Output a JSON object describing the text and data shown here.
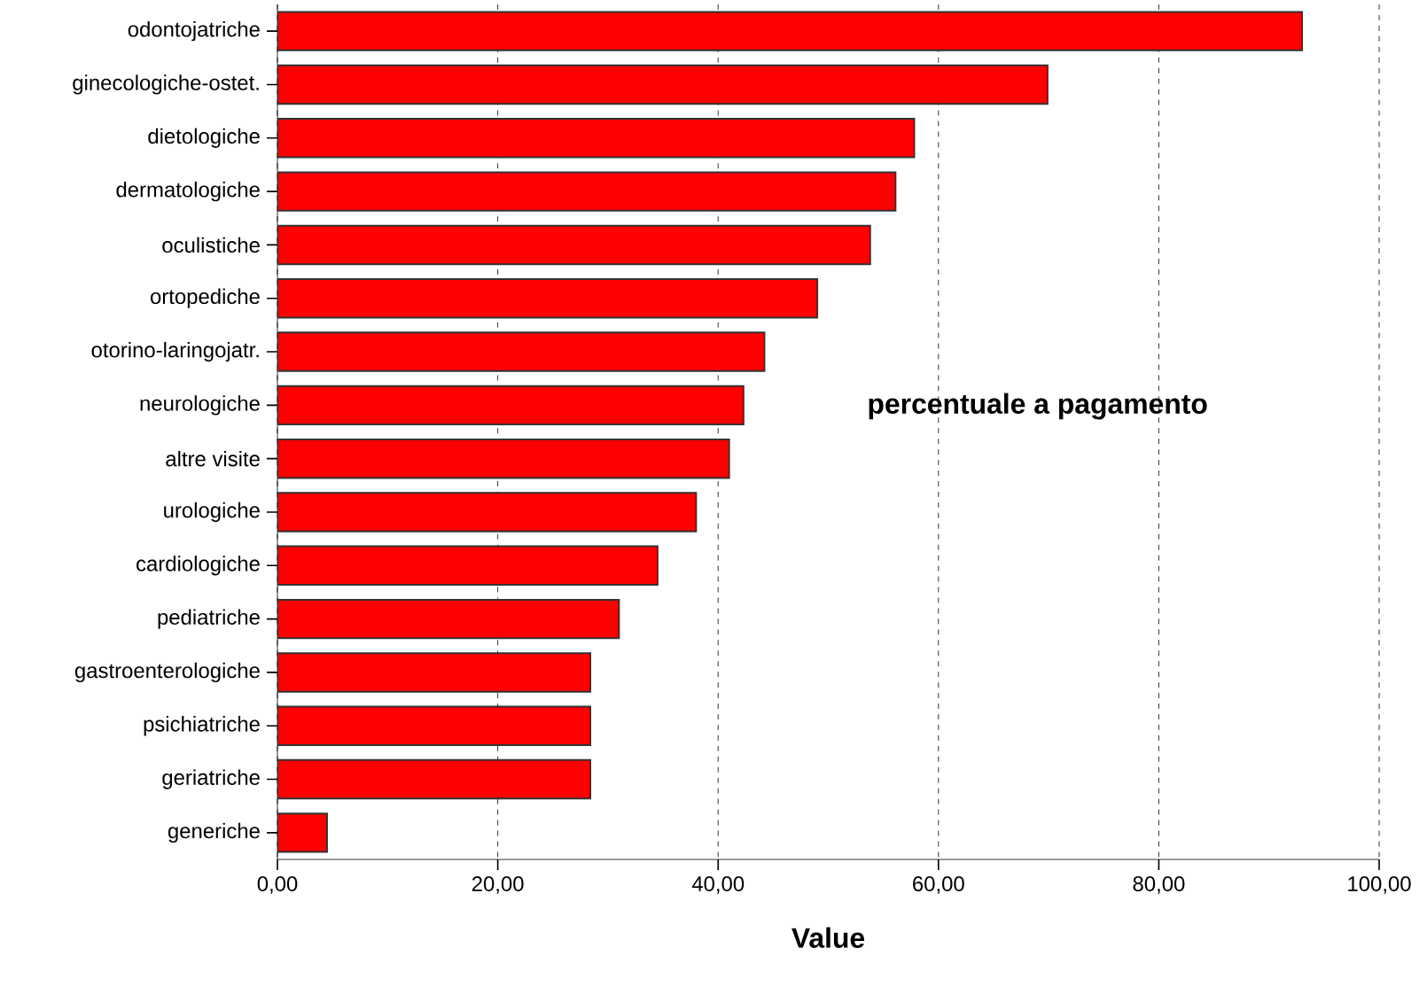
{
  "chart_data": {
    "type": "bar",
    "orientation": "horizontal",
    "categories": [
      "odontojatriche",
      "ginecologiche-ostet.",
      "dietologiche",
      "dermatologiche",
      "oculistiche",
      "ortopediche",
      "otorino-laringojatr.",
      "neurologiche",
      "altre visite",
      "urologiche",
      "cardiologiche",
      "pediatriche",
      "gastroenterologiche",
      "psichiatriche",
      "geriatriche",
      "generiche"
    ],
    "values": [
      93.0,
      69.9,
      57.8,
      56.1,
      53.8,
      49.0,
      44.2,
      42.3,
      41.0,
      38.0,
      34.5,
      31.0,
      28.4,
      28.4,
      28.4,
      4.5
    ],
    "color": "#ff0000",
    "xlim": [
      0,
      100
    ],
    "xticks": [
      {
        "value": 0,
        "label": "0,00"
      },
      {
        "value": 20,
        "label": "20,00"
      },
      {
        "value": 40,
        "label": "40,00"
      },
      {
        "value": 60,
        "label": "60,00"
      },
      {
        "value": 80,
        "label": "80,00"
      },
      {
        "value": 100,
        "label": "100,00"
      }
    ],
    "xlabel": "Value",
    "grid": "x",
    "annotations": [
      "percentuale a pagamento"
    ]
  }
}
